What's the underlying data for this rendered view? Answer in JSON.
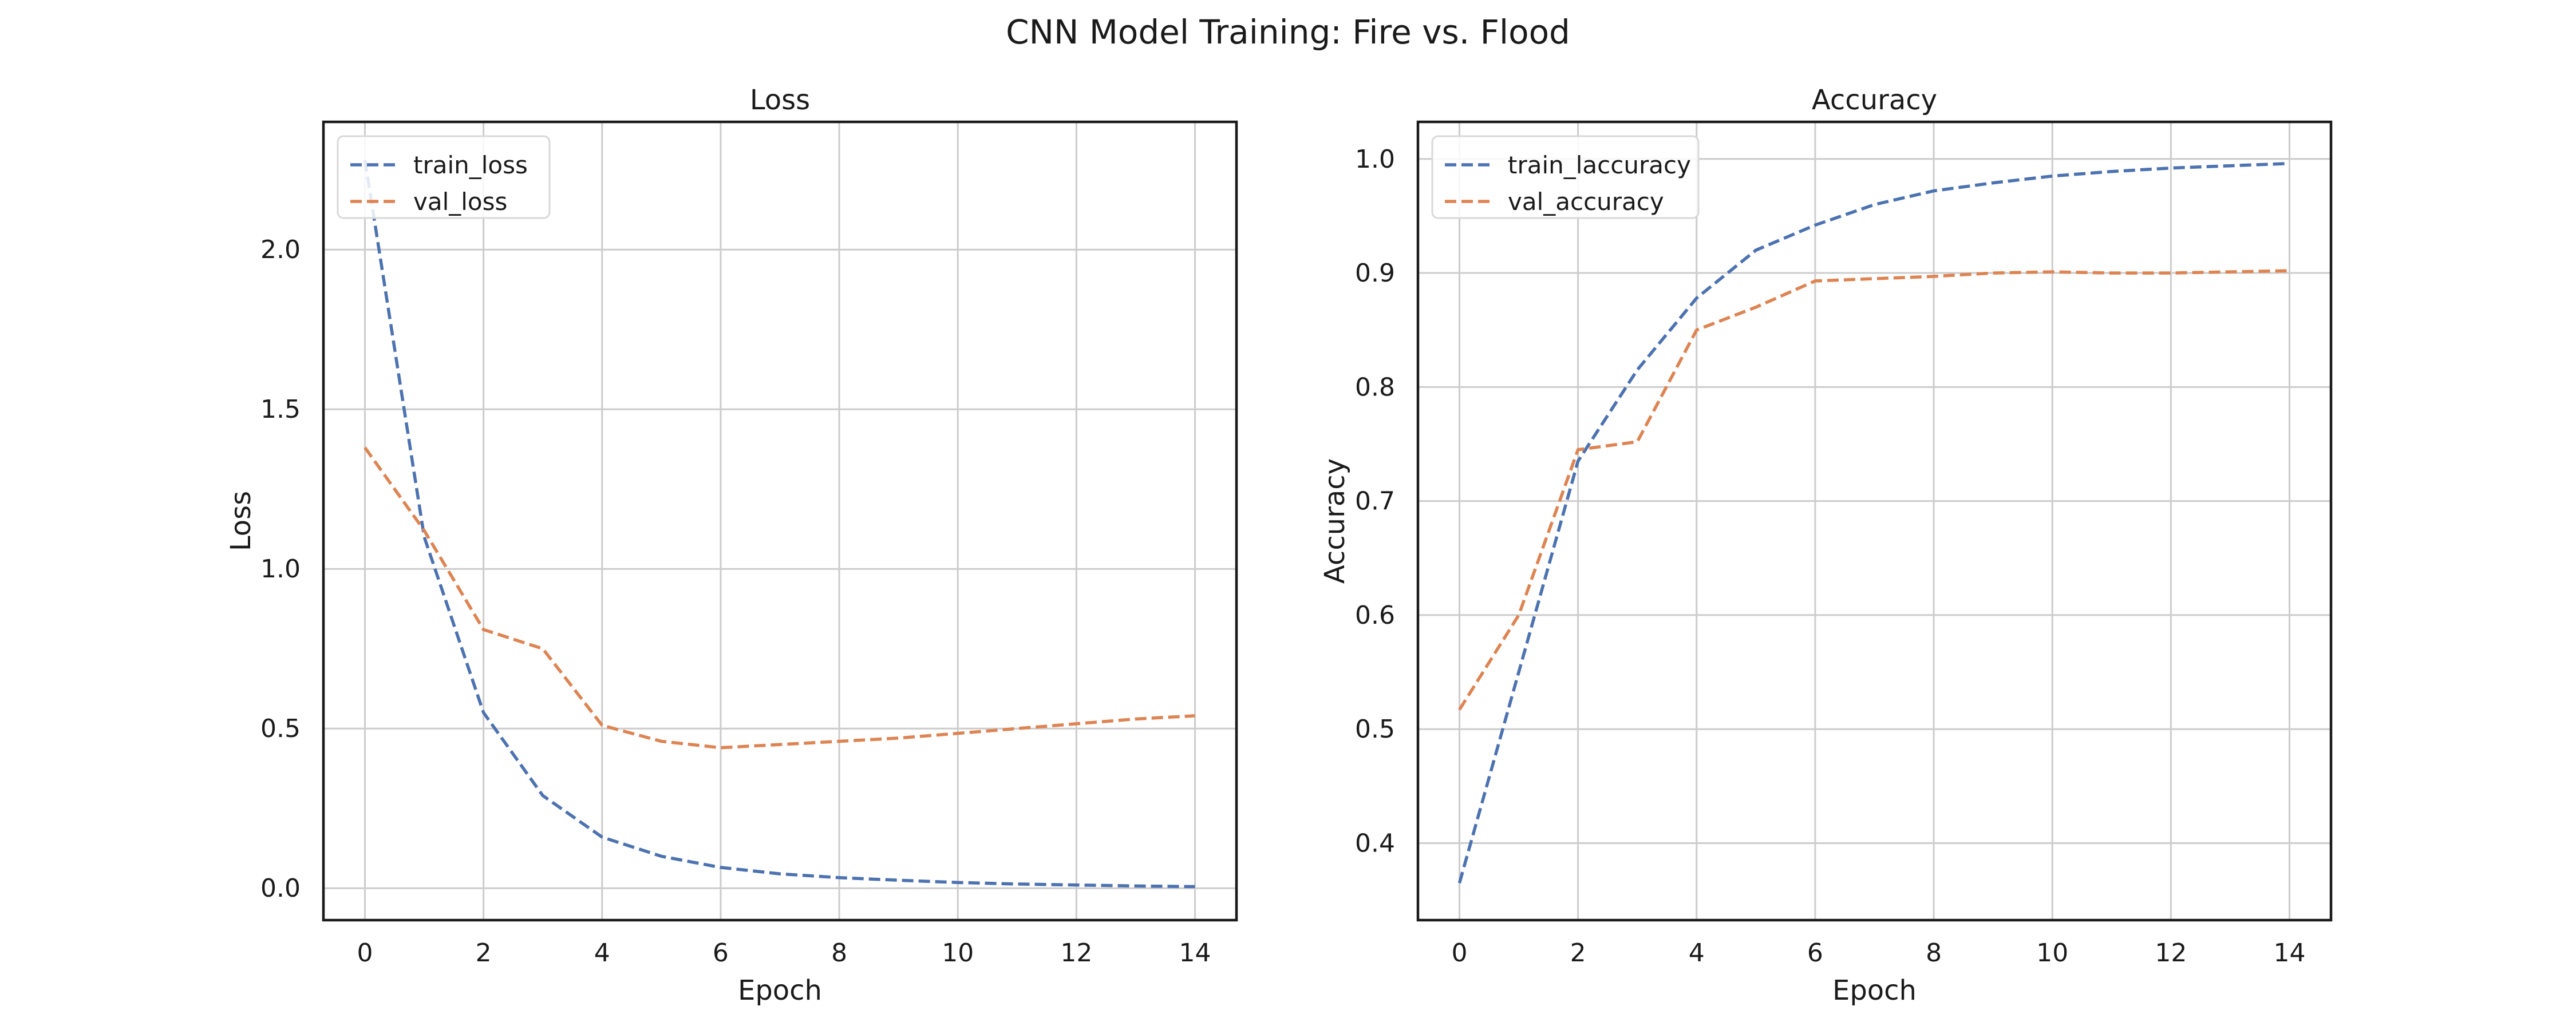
{
  "figure_title": "CNN Model Training: Fire vs. Flood",
  "colors": {
    "train": "#4C72B0",
    "val": "#DD8452",
    "grid": "#cccccc",
    "axes": "#1a1a1a"
  },
  "chart_data": [
    {
      "type": "line",
      "title": "Loss",
      "xlabel": "Epoch",
      "ylabel": "Loss",
      "xlim": [
        -0.7,
        14.7
      ],
      "ylim": [
        -0.1,
        2.4
      ],
      "xticks": [
        0,
        2,
        4,
        6,
        8,
        10,
        12,
        14
      ],
      "yticks": [
        0.0,
        0.5,
        1.0,
        1.5,
        2.0
      ],
      "ytick_labels": [
        "0.0",
        "0.5",
        "1.0",
        "1.5",
        "2.0"
      ],
      "grid": true,
      "legend_position": "top-left",
      "x": [
        0,
        1,
        2,
        3,
        4,
        5,
        6,
        7,
        8,
        9,
        10,
        11,
        12,
        13,
        14
      ],
      "series": [
        {
          "name": "train_loss",
          "color": "#4C72B0",
          "style": "dashed",
          "values": [
            2.28,
            1.1,
            0.55,
            0.29,
            0.16,
            0.1,
            0.065,
            0.045,
            0.033,
            0.025,
            0.018,
            0.013,
            0.01,
            0.007,
            0.005
          ]
        },
        {
          "name": "val_loss",
          "color": "#DD8452",
          "style": "dashed",
          "values": [
            1.38,
            1.12,
            0.81,
            0.75,
            0.51,
            0.46,
            0.44,
            0.45,
            0.46,
            0.47,
            0.485,
            0.5,
            0.515,
            0.53,
            0.54
          ]
        }
      ]
    },
    {
      "type": "line",
      "title": "Accuracy",
      "xlabel": "Epoch",
      "ylabel": "Accuracy",
      "xlim": [
        -0.7,
        14.7
      ],
      "ylim": [
        0.3325,
        1.0325
      ],
      "xticks": [
        0,
        2,
        4,
        6,
        8,
        10,
        12,
        14
      ],
      "yticks": [
        0.4,
        0.5,
        0.6,
        0.7,
        0.8,
        0.9,
        1.0
      ],
      "ytick_labels": [
        "0.4",
        "0.5",
        "0.6",
        "0.7",
        "0.8",
        "0.9",
        "1.0"
      ],
      "grid": true,
      "legend_position": "top-left",
      "x": [
        0,
        1,
        2,
        3,
        4,
        5,
        6,
        7,
        8,
        9,
        10,
        11,
        12,
        13,
        14
      ],
      "series": [
        {
          "name": "train_laccuracy",
          "color": "#4C72B0",
          "style": "dashed",
          "values": [
            0.365,
            0.55,
            0.735,
            0.815,
            0.878,
            0.92,
            0.942,
            0.96,
            0.972,
            0.979,
            0.985,
            0.989,
            0.992,
            0.994,
            0.996
          ]
        },
        {
          "name": "val_accuracy",
          "color": "#DD8452",
          "style": "dashed",
          "values": [
            0.517,
            0.6,
            0.745,
            0.752,
            0.85,
            0.87,
            0.893,
            0.895,
            0.897,
            0.9,
            0.901,
            0.9,
            0.9,
            0.901,
            0.902
          ]
        }
      ]
    }
  ]
}
